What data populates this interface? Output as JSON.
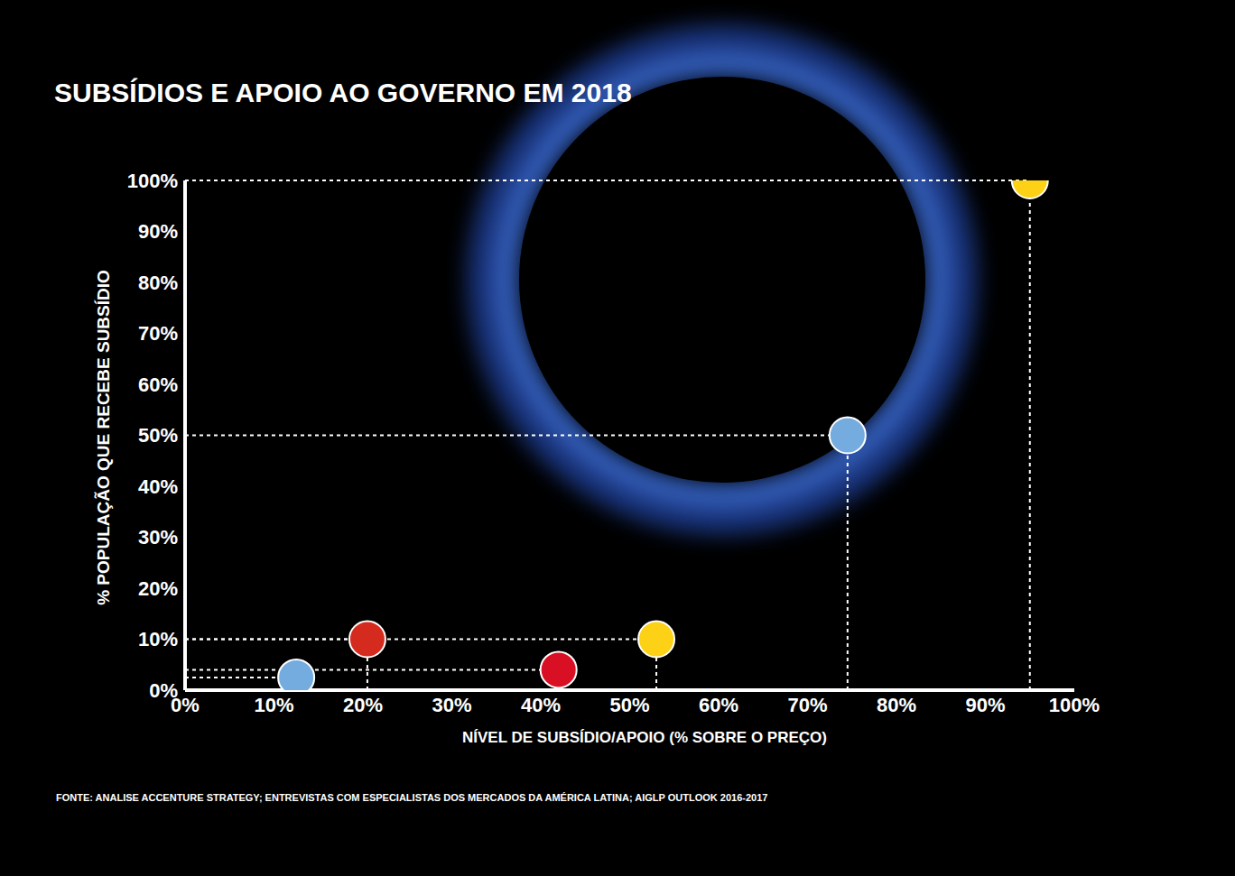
{
  "chart_data": {
    "type": "scatter",
    "title": "SUBSÍDIOS E APOIO AO GOVERNO EM 2018",
    "x_label": "NÍVEL DE SUBSÍDIO/APOIO (% SOBRE O PREÇO)",
    "y_label": "% POPULAÇÃO QUE RECEBE SUBSÍDIO",
    "source": "FONTE: ANALISE ACCENTURE STRATEGY; ENTREVISTAS COM ESPECIALISTAS DOS MERCADOS DA AMÉRICA LATINA; AIGLP OUTLOOK 2016-2017",
    "x": [
      12.5,
      20.5,
      42,
      53,
      74.5,
      95
    ],
    "values": [
      2.5,
      10,
      4,
      10,
      50,
      100
    ],
    "colors": [
      "#74acdf",
      "#d52b1e",
      "#d91023",
      "#fcd116",
      "#74acdf",
      "#fcd116"
    ],
    "xlim": [
      0,
      100
    ],
    "ylim": [
      0,
      100
    ],
    "xticks": [
      {
        "value": 0,
        "label": "0%"
      },
      {
        "value": 10,
        "label": "10%"
      },
      {
        "value": 20,
        "label": "20%"
      },
      {
        "value": 30,
        "label": "30%"
      },
      {
        "value": 40,
        "label": "40%"
      },
      {
        "value": 50,
        "label": "50%"
      },
      {
        "value": 60,
        "label": "60%"
      },
      {
        "value": 70,
        "label": "70%"
      },
      {
        "value": 80,
        "label": "80%"
      },
      {
        "value": 90,
        "label": "90%"
      },
      {
        "value": 100,
        "label": "100%"
      }
    ],
    "yticks": [
      {
        "value": 0,
        "label": "0%"
      },
      {
        "value": 10,
        "label": "10%"
      },
      {
        "value": 20,
        "label": "20%"
      },
      {
        "value": 30,
        "label": "30%"
      },
      {
        "value": 40,
        "label": "40%"
      },
      {
        "value": 50,
        "label": "50%"
      },
      {
        "value": 60,
        "label": "60%"
      },
      {
        "value": 70,
        "label": "70%"
      },
      {
        "value": 80,
        "label": "80%"
      },
      {
        "value": 90,
        "label": "90%"
      },
      {
        "value": 100,
        "label": "100%"
      }
    ],
    "grid": false,
    "marker": "circle"
  }
}
